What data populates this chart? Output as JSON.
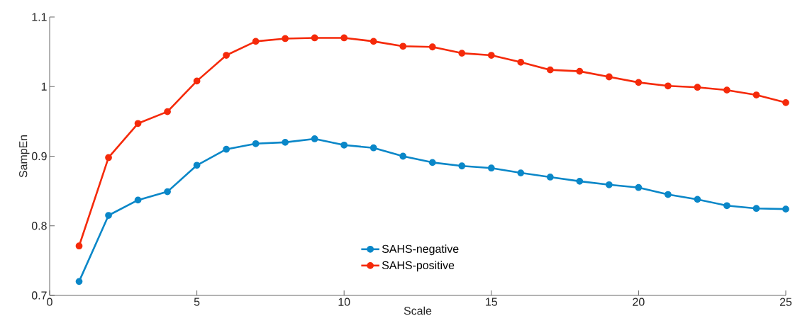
{
  "chart_data": {
    "type": "line",
    "xlabel": "Scale",
    "ylabel": "SampEn",
    "x": [
      1,
      2,
      3,
      4,
      5,
      6,
      7,
      8,
      9,
      10,
      11,
      12,
      13,
      14,
      15,
      16,
      17,
      18,
      19,
      20,
      21,
      22,
      23,
      24,
      25
    ],
    "series": [
      {
        "name": "SAHS-negative",
        "color": "#0a87c8",
        "values": [
          0.72,
          0.815,
          0.837,
          0.849,
          0.887,
          0.91,
          0.918,
          0.92,
          0.925,
          0.916,
          0.912,
          0.9,
          0.891,
          0.886,
          0.883,
          0.876,
          0.87,
          0.864,
          0.859,
          0.855,
          0.845,
          0.838,
          0.829,
          0.825,
          0.824
        ]
      },
      {
        "name": "SAHS-positive",
        "color": "#f52a0a",
        "values": [
          0.771,
          0.898,
          0.947,
          0.964,
          1.008,
          1.045,
          1.065,
          1.069,
          1.07,
          1.07,
          1.065,
          1.058,
          1.057,
          1.048,
          1.045,
          1.035,
          1.024,
          1.022,
          1.014,
          1.006,
          1.001,
          0.999,
          0.995,
          0.988,
          0.977
        ]
      }
    ],
    "xlim": [
      0,
      25
    ],
    "ylim": [
      0.7,
      1.1
    ],
    "xticks": [
      0,
      5,
      10,
      15,
      20,
      25
    ],
    "yticks": [
      0.7,
      0.8,
      0.9,
      1,
      1.1
    ],
    "legend": "bottom",
    "marker": "circle",
    "line_style": "solid",
    "grid": false
  }
}
